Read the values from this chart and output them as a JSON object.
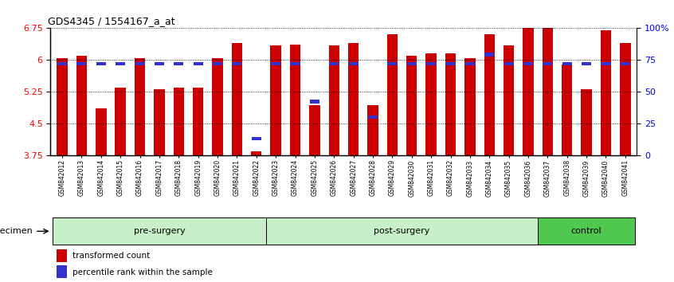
{
  "title": "GDS4345 / 1554167_a_at",
  "samples": [
    "GSM842012",
    "GSM842013",
    "GSM842014",
    "GSM842015",
    "GSM842016",
    "GSM842017",
    "GSM842018",
    "GSM842019",
    "GSM842020",
    "GSM842021",
    "GSM842022",
    "GSM842023",
    "GSM842024",
    "GSM842025",
    "GSM842026",
    "GSM842027",
    "GSM842028",
    "GSM842029",
    "GSM842030",
    "GSM842031",
    "GSM842032",
    "GSM842033",
    "GSM842034",
    "GSM842035",
    "GSM842036",
    "GSM842037",
    "GSM842038",
    "GSM842039",
    "GSM842040",
    "GSM842041"
  ],
  "red_values": [
    6.05,
    6.1,
    4.85,
    5.35,
    6.05,
    5.3,
    5.35,
    5.35,
    6.05,
    6.4,
    3.83,
    6.35,
    6.37,
    4.93,
    6.35,
    6.4,
    4.93,
    6.6,
    6.1,
    6.15,
    6.15,
    6.05,
    6.6,
    6.35,
    6.75,
    6.75,
    5.9,
    5.3,
    6.7,
    6.4
  ],
  "blue_pct": [
    72,
    72,
    72,
    72,
    72,
    72,
    72,
    72,
    72,
    72,
    13,
    72,
    72,
    42,
    72,
    72,
    30,
    72,
    72,
    72,
    72,
    72,
    79,
    72,
    72,
    72,
    72,
    72,
    72,
    72
  ],
  "groups": [
    {
      "label": "pre-surgery",
      "start": 0,
      "end": 11
    },
    {
      "label": "post-surgery",
      "start": 11,
      "end": 25
    },
    {
      "label": "control",
      "start": 25,
      "end": 30
    }
  ],
  "group_colors": [
    "#c8f0c8",
    "#c8f0c8",
    "#50c850"
  ],
  "ylim_left": [
    3.75,
    6.75
  ],
  "yticks_left": [
    3.75,
    4.5,
    5.25,
    6.0,
    6.75
  ],
  "yticks_right": [
    0,
    25,
    50,
    75,
    100
  ],
  "ylabel_right_labels": [
    "0",
    "25",
    "50",
    "75",
    "100%"
  ],
  "bar_color": "#CC0000",
  "blue_color": "#3333CC",
  "bg_color": "#ffffff",
  "legend_items": [
    "transformed count",
    "percentile rank within the sample"
  ],
  "specimen_label": "specimen"
}
